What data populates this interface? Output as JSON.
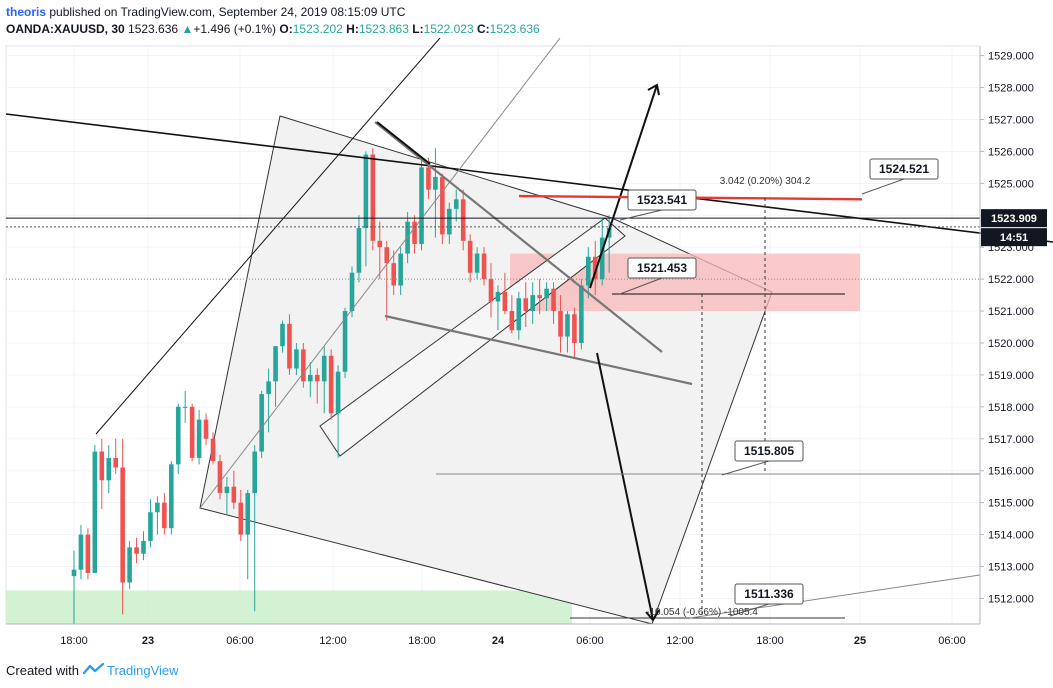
{
  "header": {
    "author": "theoris",
    "published_text": "published on TradingView.com, September 24, 2019 08:15:09 UTC",
    "symbol": "OANDA:XAUUSD, 30",
    "last_price": "1523.636",
    "change": "+1.496 (+0.1%)",
    "open_label": "O:",
    "open": "1523.202",
    "high_label": "H:",
    "high": "1523.863",
    "low_label": "L:",
    "low": "1522.023",
    "close_label": "C:",
    "close": "1523.636"
  },
  "footer": {
    "created_with": "Created with",
    "brand": "TradingView"
  },
  "colors": {
    "up": "#26a69a",
    "down": "#ef5350",
    "axis": "#b2b5be",
    "red_line": "#e53935",
    "zone": "#f8b8b8",
    "green_zone": "#c8efc8"
  },
  "chart_data": {
    "type": "candlestick",
    "ylim": [
      1511.2,
      1529.3
    ],
    "y_ticks": [
      "1512.000",
      "1513.000",
      "1514.000",
      "1515.000",
      "1516.000",
      "1517.000",
      "1518.000",
      "1519.000",
      "1520.000",
      "1521.000",
      "1522.000",
      "1523.000",
      "1524.000",
      "1525.000",
      "1526.000",
      "1527.000",
      "1528.000",
      "1529.000"
    ],
    "x_ticks": [
      "18:00",
      "23",
      "06:00",
      "12:00",
      "18:00",
      "24",
      "06:00",
      "12:00",
      "18:00",
      "25",
      "06:00"
    ],
    "current_price_label": "1523.909",
    "countdown_label": "14:51",
    "annotations": [
      {
        "text": "1524.521",
        "price": 1524.521
      },
      {
        "text": "1523.541",
        "price": 1523.541
      },
      {
        "text": "1521.453",
        "price": 1521.453
      },
      {
        "text": "1515.805",
        "price": 1515.805
      },
      {
        "text": "1511.336",
        "price": 1511.336
      },
      {
        "text": "3.042 (0.20%) 304.2"
      },
      {
        "text": "-10.054 (-0.66%) -1005.4"
      }
    ],
    "candles": [
      [
        1512.7,
        1513.5,
        1511.2,
        1512.9
      ],
      [
        1512.9,
        1514.3,
        1512.6,
        1514.0
      ],
      [
        1514.0,
        1514.2,
        1512.6,
        1512.8
      ],
      [
        1512.8,
        1516.8,
        1512.8,
        1516.6
      ],
      [
        1516.6,
        1517.0,
        1514.8,
        1515.7
      ],
      [
        1515.7,
        1516.8,
        1515.3,
        1516.4
      ],
      [
        1516.4,
        1517.0,
        1515.9,
        1516.1
      ],
      [
        1516.1,
        1517.0,
        1511.5,
        1512.5
      ],
      [
        1512.5,
        1513.8,
        1512.3,
        1513.6
      ],
      [
        1513.6,
        1513.9,
        1513.1,
        1513.4
      ],
      [
        1513.4,
        1514.1,
        1513.2,
        1513.8
      ],
      [
        1513.8,
        1515.1,
        1513.6,
        1514.7
      ],
      [
        1514.7,
        1515.2,
        1514.0,
        1515.0
      ],
      [
        1515.0,
        1515.3,
        1514.0,
        1514.2
      ],
      [
        1514.2,
        1516.3,
        1514.0,
        1516.2
      ],
      [
        1516.2,
        1518.1,
        1515.9,
        1518.0
      ],
      [
        1518.0,
        1518.5,
        1517.5,
        1518.0
      ],
      [
        1518.0,
        1518.1,
        1516.3,
        1516.4
      ],
      [
        1516.4,
        1517.9,
        1516.2,
        1517.6
      ],
      [
        1517.6,
        1517.8,
        1516.8,
        1517.0
      ],
      [
        1517.0,
        1517.2,
        1516.2,
        1516.3
      ],
      [
        1516.3,
        1516.5,
        1515.1,
        1515.3
      ],
      [
        1515.3,
        1515.8,
        1514.6,
        1515.5
      ],
      [
        1515.5,
        1516.0,
        1514.8,
        1515.0
      ],
      [
        1515.0,
        1515.4,
        1513.8,
        1514.0
      ],
      [
        1514.0,
        1515.4,
        1512.6,
        1515.3
      ],
      [
        1515.3,
        1516.8,
        1511.6,
        1516.6
      ],
      [
        1516.6,
        1518.5,
        1516.4,
        1518.4
      ],
      [
        1518.4,
        1519.2,
        1517.2,
        1518.8
      ],
      [
        1518.8,
        1519.9,
        1518.0,
        1519.9
      ],
      [
        1519.9,
        1520.7,
        1519.7,
        1520.6
      ],
      [
        1520.6,
        1520.9,
        1519.0,
        1519.2
      ],
      [
        1519.2,
        1520.0,
        1519.0,
        1519.8
      ],
      [
        1519.8,
        1520.0,
        1518.6,
        1518.8
      ],
      [
        1518.8,
        1519.4,
        1518.3,
        1519.0
      ],
      [
        1519.0,
        1519.2,
        1518.1,
        1518.8
      ],
      [
        1518.8,
        1519.9,
        1517.8,
        1519.6
      ],
      [
        1519.6,
        1519.8,
        1517.6,
        1517.8
      ],
      [
        1517.8,
        1519.3,
        1516.4,
        1519.1
      ],
      [
        1519.1,
        1521.1,
        1518.9,
        1521.0
      ],
      [
        1521.0,
        1522.4,
        1520.8,
        1522.2
      ],
      [
        1522.2,
        1524.0,
        1521.9,
        1523.6
      ],
      [
        1523.6,
        1526.0,
        1522.4,
        1525.9
      ],
      [
        1525.9,
        1526.1,
        1522.9,
        1523.2
      ],
      [
        1523.2,
        1523.8,
        1522.0,
        1523.0
      ],
      [
        1523.0,
        1523.2,
        1520.7,
        1522.5
      ],
      [
        1522.5,
        1522.9,
        1521.5,
        1521.8
      ],
      [
        1521.8,
        1523.0,
        1521.5,
        1522.8
      ],
      [
        1522.8,
        1524.1,
        1522.5,
        1523.8
      ],
      [
        1523.8,
        1524.0,
        1522.8,
        1523.1
      ],
      [
        1523.1,
        1525.8,
        1522.9,
        1525.5
      ],
      [
        1525.5,
        1525.8,
        1524.5,
        1524.8
      ],
      [
        1524.8,
        1526.1,
        1523.3,
        1525.2
      ],
      [
        1525.2,
        1525.3,
        1523.1,
        1523.4
      ],
      [
        1523.4,
        1524.4,
        1523.1,
        1524.2
      ],
      [
        1524.2,
        1524.8,
        1523.8,
        1524.5
      ],
      [
        1524.5,
        1524.8,
        1522.9,
        1523.2
      ],
      [
        1523.2,
        1523.4,
        1521.9,
        1522.2
      ],
      [
        1522.2,
        1523.0,
        1522.0,
        1522.8
      ],
      [
        1522.8,
        1523.0,
        1521.8,
        1522.0
      ],
      [
        1522.0,
        1522.5,
        1520.8,
        1521.3
      ],
      [
        1521.3,
        1521.8,
        1520.4,
        1521.6
      ],
      [
        1521.6,
        1522.2,
        1520.9,
        1521.0
      ],
      [
        1521.0,
        1521.5,
        1520.3,
        1520.4
      ],
      [
        1520.4,
        1521.6,
        1520.1,
        1521.4
      ],
      [
        1521.4,
        1521.9,
        1520.5,
        1521.0
      ],
      [
        1521.0,
        1521.9,
        1520.6,
        1521.5
      ],
      [
        1521.5,
        1522.0,
        1520.9,
        1521.4
      ],
      [
        1521.4,
        1521.9,
        1521.0,
        1521.7
      ],
      [
        1521.7,
        1521.9,
        1520.6,
        1521.0
      ],
      [
        1521.0,
        1521.5,
        1519.7,
        1520.2
      ],
      [
        1520.2,
        1521.0,
        1519.7,
        1520.9
      ],
      [
        1520.9,
        1521.1,
        1519.5,
        1520.0
      ],
      [
        1520.0,
        1522.0,
        1519.8,
        1521.8
      ],
      [
        1521.8,
        1523.0,
        1521.4,
        1522.7
      ],
      [
        1522.7,
        1523.2,
        1521.5,
        1522.0
      ],
      [
        1522.0,
        1523.9,
        1521.8,
        1523.3
      ],
      [
        1523.3,
        1524.0,
        1522.2,
        1523.6
      ]
    ]
  }
}
